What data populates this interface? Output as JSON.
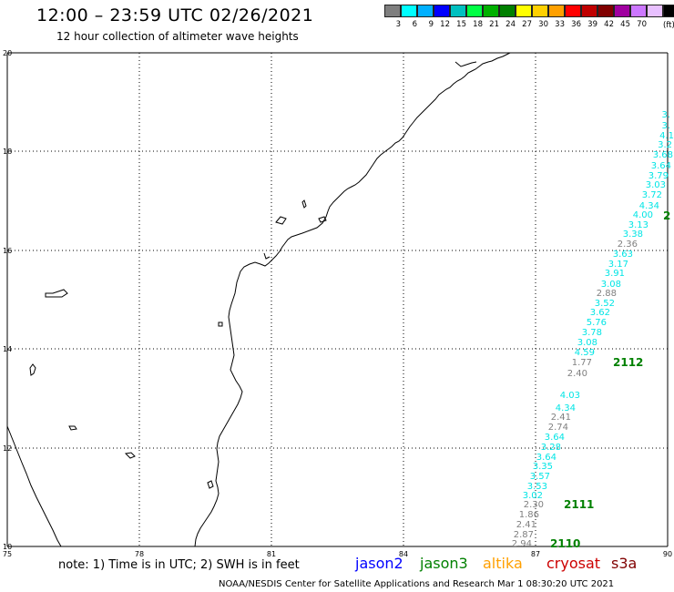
{
  "header": {
    "title": "12:00 – 23:59 UTC 02/26/2021",
    "subtitle": "12 hour collection of altimeter wave heights"
  },
  "legend": {
    "colors": [
      "#7f7f7f",
      "#00ffff",
      "#00b0ff",
      "#0000ff",
      "#00c0c0",
      "#00ff44",
      "#00b000",
      "#008000",
      "#ffff00",
      "#ffd000",
      "#ffa000",
      "#ff0000",
      "#c00000",
      "#800000",
      "#a000a0",
      "#cc77ff",
      "#e8c0ff",
      "#000000"
    ],
    "labels": [
      "3",
      "6",
      "9",
      "12",
      "15",
      "18",
      "21",
      "24",
      "27",
      "30",
      "33",
      "36",
      "39",
      "42",
      "45",
      "70"
    ],
    "unit": "(ft)"
  },
  "map": {
    "lon_ticks": [
      "75",
      "78",
      "81",
      "84",
      "87",
      "90"
    ],
    "lat_ticks": [
      "20",
      "18",
      "16",
      "14",
      "12",
      "10"
    ],
    "lon_range": [
      75,
      90
    ],
    "lat_range": [
      10,
      20
    ],
    "coast_color": "#000000",
    "grid": "dotted",
    "wave_readings": [
      {
        "text": "3.",
        "color": "#00e5e5"
      },
      {
        "text": "3.",
        "color": "#00e5e5"
      },
      {
        "text": "4.1",
        "color": "#00e5e5"
      },
      {
        "text": "3.2",
        "color": "#00e5e5"
      },
      {
        "text": "3.68",
        "color": "#00e5e5"
      },
      {
        "text": "3.64",
        "color": "#00e5e5"
      },
      {
        "text": "3.79",
        "color": "#00e5e5"
      },
      {
        "text": "3.03",
        "color": "#00e5e5"
      },
      {
        "text": "3.72",
        "color": "#00e5e5"
      },
      {
        "text": "4.34",
        "color": "#00e5e5"
      },
      {
        "text": "4.00",
        "color": "#00e5e5"
      },
      {
        "text": "3.13",
        "color": "#00e5e5"
      },
      {
        "text": "3.38",
        "color": "#00e5e5"
      },
      {
        "text": "2.36",
        "color": "#7f7f7f"
      },
      {
        "text": "3.63",
        "color": "#00e5e5"
      },
      {
        "text": "3.17",
        "color": "#00e5e5"
      },
      {
        "text": "3.91",
        "color": "#00e5e5"
      },
      {
        "text": "3.08",
        "color": "#00e5e5"
      },
      {
        "text": "2.88",
        "color": "#7f7f7f"
      },
      {
        "text": "3.52",
        "color": "#00e5e5"
      },
      {
        "text": "3.62",
        "color": "#00e5e5"
      },
      {
        "text": "5.76",
        "color": "#00e5e5"
      },
      {
        "text": "3.78",
        "color": "#00e5e5"
      },
      {
        "text": "3.08",
        "color": "#00e5e5"
      },
      {
        "text": "4.59",
        "color": "#00e5e5"
      },
      {
        "text": "1.77",
        "color": "#7f7f7f"
      },
      {
        "text": "2.40",
        "color": "#7f7f7f"
      },
      {
        "text": "4.03",
        "color": "#00e5e5"
      },
      {
        "text": "4.34",
        "color": "#00e5e5"
      },
      {
        "text": "2.41",
        "color": "#7f7f7f"
      },
      {
        "text": "2.74",
        "color": "#7f7f7f"
      },
      {
        "text": "3.64",
        "color": "#00e5e5"
      },
      {
        "text": "3.28",
        "color": "#00e5e5"
      },
      {
        "text": "3.64",
        "color": "#00e5e5"
      },
      {
        "text": "3.35",
        "color": "#00e5e5"
      },
      {
        "text": "3.57",
        "color": "#00e5e5"
      },
      {
        "text": "3.53",
        "color": "#00e5e5"
      },
      {
        "text": "3.02",
        "color": "#00e5e5"
      },
      {
        "text": "2.30",
        "color": "#7f7f7f"
      },
      {
        "text": "1.86",
        "color": "#7f7f7f"
      },
      {
        "text": "2.41",
        "color": "#7f7f7f"
      },
      {
        "text": "2.87",
        "color": "#7f7f7f"
      },
      {
        "text": "2.94",
        "color": "#7f7f7f"
      }
    ],
    "track_times": [
      {
        "text": "2",
        "color": "#008000"
      },
      {
        "text": "2112",
        "color": "#008000"
      },
      {
        "text": "2111",
        "color": "#008000"
      },
      {
        "text": "2110",
        "color": "#008000"
      }
    ]
  },
  "footer": {
    "note": "note: 1) Time is in UTC; 2) SWH is in feet",
    "satellites": [
      {
        "name": "jason2",
        "color": "#0000ff"
      },
      {
        "name": "jason3",
        "color": "#008000"
      },
      {
        "name": "altika",
        "color": "#ffa000"
      },
      {
        "name": "cryosat",
        "color": "#cc0000"
      },
      {
        "name": "s3a",
        "color": "#800000"
      }
    ],
    "credit": "NOAA/NESDIS Center for Satellite Applications and Research    Mar  1 08:30:20 UTC 2021"
  }
}
